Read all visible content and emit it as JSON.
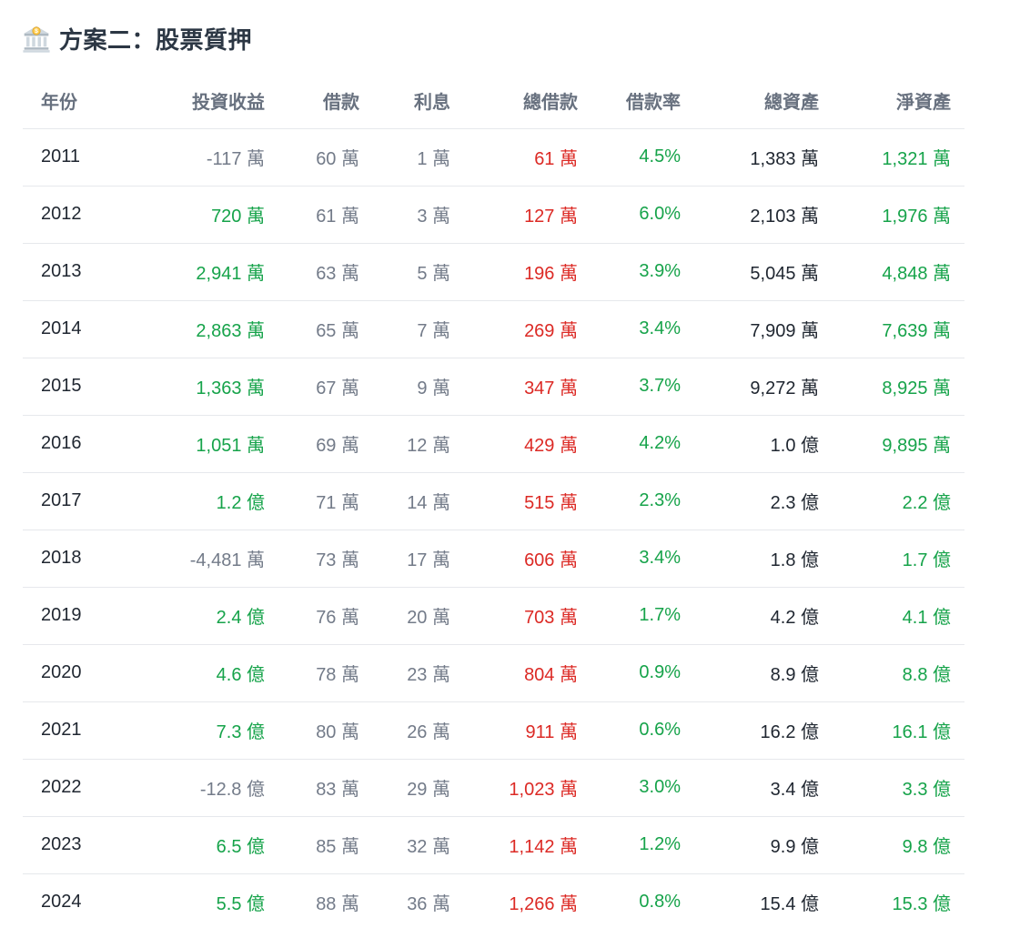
{
  "title": {
    "icon": "bank-icon",
    "text": "方案二：股票質押"
  },
  "colors": {
    "dark": "#1f2630",
    "gray": "#737b89",
    "green": "#16a34a",
    "red": "#dc2a25",
    "header": "#68717f",
    "title": "#2c3744",
    "divider": "#e6e8ec",
    "background": "#ffffff"
  },
  "table": {
    "columns": [
      "year",
      "investment-return",
      "borrow",
      "interest",
      "total-borrow",
      "borrow-rate",
      "total-assets",
      "net-assets"
    ],
    "headers": [
      "年份",
      "投資收益",
      "借款",
      "利息",
      "總借款",
      "借款率",
      "總資產",
      "淨資產"
    ],
    "rows": [
      {
        "cells": [
          {
            "text": "2011",
            "tone": "dark"
          },
          {
            "text": "-117 萬",
            "tone": "gray"
          },
          {
            "text": "60 萬",
            "tone": "gray"
          },
          {
            "text": "1 萬",
            "tone": "gray"
          },
          {
            "text": "61 萬",
            "tone": "red"
          },
          {
            "text": "4.5%",
            "tone": "green"
          },
          {
            "text": "1,383 萬",
            "tone": "dark"
          },
          {
            "text": "1,321 萬",
            "tone": "green"
          }
        ]
      },
      {
        "cells": [
          {
            "text": "2012",
            "tone": "dark"
          },
          {
            "text": "720 萬",
            "tone": "green"
          },
          {
            "text": "61 萬",
            "tone": "gray"
          },
          {
            "text": "3 萬",
            "tone": "gray"
          },
          {
            "text": "127 萬",
            "tone": "red"
          },
          {
            "text": "6.0%",
            "tone": "green"
          },
          {
            "text": "2,103 萬",
            "tone": "dark"
          },
          {
            "text": "1,976 萬",
            "tone": "green"
          }
        ]
      },
      {
        "cells": [
          {
            "text": "2013",
            "tone": "dark"
          },
          {
            "text": "2,941 萬",
            "tone": "green"
          },
          {
            "text": "63 萬",
            "tone": "gray"
          },
          {
            "text": "5 萬",
            "tone": "gray"
          },
          {
            "text": "196 萬",
            "tone": "red"
          },
          {
            "text": "3.9%",
            "tone": "green"
          },
          {
            "text": "5,045 萬",
            "tone": "dark"
          },
          {
            "text": "4,848 萬",
            "tone": "green"
          }
        ]
      },
      {
        "cells": [
          {
            "text": "2014",
            "tone": "dark"
          },
          {
            "text": "2,863 萬",
            "tone": "green"
          },
          {
            "text": "65 萬",
            "tone": "gray"
          },
          {
            "text": "7 萬",
            "tone": "gray"
          },
          {
            "text": "269 萬",
            "tone": "red"
          },
          {
            "text": "3.4%",
            "tone": "green"
          },
          {
            "text": "7,909 萬",
            "tone": "dark"
          },
          {
            "text": "7,639 萬",
            "tone": "green"
          }
        ]
      },
      {
        "cells": [
          {
            "text": "2015",
            "tone": "dark"
          },
          {
            "text": "1,363 萬",
            "tone": "green"
          },
          {
            "text": "67 萬",
            "tone": "gray"
          },
          {
            "text": "9 萬",
            "tone": "gray"
          },
          {
            "text": "347 萬",
            "tone": "red"
          },
          {
            "text": "3.7%",
            "tone": "green"
          },
          {
            "text": "9,272 萬",
            "tone": "dark"
          },
          {
            "text": "8,925 萬",
            "tone": "green"
          }
        ]
      },
      {
        "cells": [
          {
            "text": "2016",
            "tone": "dark"
          },
          {
            "text": "1,051 萬",
            "tone": "green"
          },
          {
            "text": "69 萬",
            "tone": "gray"
          },
          {
            "text": "12 萬",
            "tone": "gray"
          },
          {
            "text": "429 萬",
            "tone": "red"
          },
          {
            "text": "4.2%",
            "tone": "green"
          },
          {
            "text": "1.0 億",
            "tone": "dark"
          },
          {
            "text": "9,895 萬",
            "tone": "green"
          }
        ]
      },
      {
        "cells": [
          {
            "text": "2017",
            "tone": "dark"
          },
          {
            "text": "1.2 億",
            "tone": "green"
          },
          {
            "text": "71 萬",
            "tone": "gray"
          },
          {
            "text": "14 萬",
            "tone": "gray"
          },
          {
            "text": "515 萬",
            "tone": "red"
          },
          {
            "text": "2.3%",
            "tone": "green"
          },
          {
            "text": "2.3 億",
            "tone": "dark"
          },
          {
            "text": "2.2 億",
            "tone": "green"
          }
        ]
      },
      {
        "cells": [
          {
            "text": "2018",
            "tone": "dark"
          },
          {
            "text": "-4,481 萬",
            "tone": "gray"
          },
          {
            "text": "73 萬",
            "tone": "gray"
          },
          {
            "text": "17 萬",
            "tone": "gray"
          },
          {
            "text": "606 萬",
            "tone": "red"
          },
          {
            "text": "3.4%",
            "tone": "green"
          },
          {
            "text": "1.8 億",
            "tone": "dark"
          },
          {
            "text": "1.7 億",
            "tone": "green"
          }
        ]
      },
      {
        "cells": [
          {
            "text": "2019",
            "tone": "dark"
          },
          {
            "text": "2.4 億",
            "tone": "green"
          },
          {
            "text": "76 萬",
            "tone": "gray"
          },
          {
            "text": "20 萬",
            "tone": "gray"
          },
          {
            "text": "703 萬",
            "tone": "red"
          },
          {
            "text": "1.7%",
            "tone": "green"
          },
          {
            "text": "4.2 億",
            "tone": "dark"
          },
          {
            "text": "4.1 億",
            "tone": "green"
          }
        ]
      },
      {
        "cells": [
          {
            "text": "2020",
            "tone": "dark"
          },
          {
            "text": "4.6 億",
            "tone": "green"
          },
          {
            "text": "78 萬",
            "tone": "gray"
          },
          {
            "text": "23 萬",
            "tone": "gray"
          },
          {
            "text": "804 萬",
            "tone": "red"
          },
          {
            "text": "0.9%",
            "tone": "green"
          },
          {
            "text": "8.9 億",
            "tone": "dark"
          },
          {
            "text": "8.8 億",
            "tone": "green"
          }
        ]
      },
      {
        "cells": [
          {
            "text": "2021",
            "tone": "dark"
          },
          {
            "text": "7.3 億",
            "tone": "green"
          },
          {
            "text": "80 萬",
            "tone": "gray"
          },
          {
            "text": "26 萬",
            "tone": "gray"
          },
          {
            "text": "911 萬",
            "tone": "red"
          },
          {
            "text": "0.6%",
            "tone": "green"
          },
          {
            "text": "16.2 億",
            "tone": "dark"
          },
          {
            "text": "16.1 億",
            "tone": "green"
          }
        ]
      },
      {
        "cells": [
          {
            "text": "2022",
            "tone": "dark"
          },
          {
            "text": "-12.8 億",
            "tone": "gray"
          },
          {
            "text": "83 萬",
            "tone": "gray"
          },
          {
            "text": "29 萬",
            "tone": "gray"
          },
          {
            "text": "1,023 萬",
            "tone": "red"
          },
          {
            "text": "3.0%",
            "tone": "green"
          },
          {
            "text": "3.4 億",
            "tone": "dark"
          },
          {
            "text": "3.3 億",
            "tone": "green"
          }
        ]
      },
      {
        "cells": [
          {
            "text": "2023",
            "tone": "dark"
          },
          {
            "text": "6.5 億",
            "tone": "green"
          },
          {
            "text": "85 萬",
            "tone": "gray"
          },
          {
            "text": "32 萬",
            "tone": "gray"
          },
          {
            "text": "1,142 萬",
            "tone": "red"
          },
          {
            "text": "1.2%",
            "tone": "green"
          },
          {
            "text": "9.9 億",
            "tone": "dark"
          },
          {
            "text": "9.8 億",
            "tone": "green"
          }
        ]
      },
      {
        "cells": [
          {
            "text": "2024",
            "tone": "dark"
          },
          {
            "text": "5.5 億",
            "tone": "green"
          },
          {
            "text": "88 萬",
            "tone": "gray"
          },
          {
            "text": "36 萬",
            "tone": "gray"
          },
          {
            "text": "1,266 萬",
            "tone": "red"
          },
          {
            "text": "0.8%",
            "tone": "green"
          },
          {
            "text": "15.4 億",
            "tone": "dark"
          },
          {
            "text": "15.3 億",
            "tone": "green"
          }
        ]
      }
    ]
  }
}
